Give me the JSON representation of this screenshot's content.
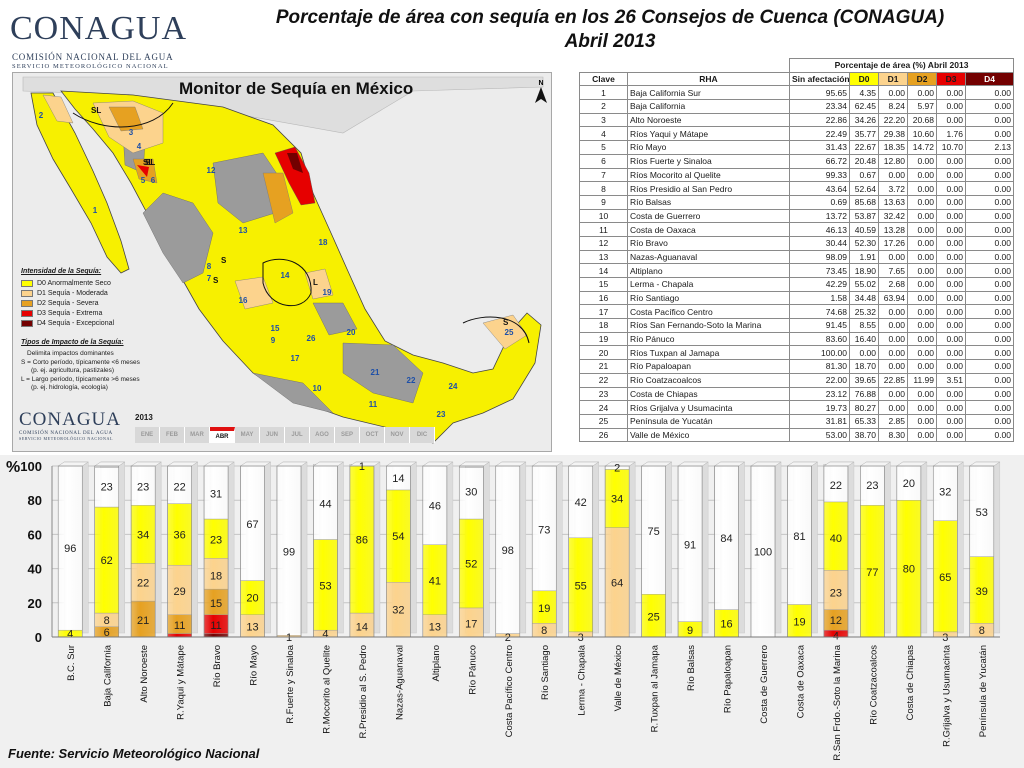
{
  "logo": {
    "word": "CONAGUA",
    "line1": "COMISIÓN NACIONAL DEL AGUA",
    "line2": "SERVICIO METEOROLÓGICO NACIONAL"
  },
  "title_line1": "Porcentaje de área con sequía en los 26 Consejos de Cuenca (CONAGUA)",
  "title_line2": "Abril 2013",
  "map": {
    "title": "Monitor de Sequía en México",
    "north": "N",
    "legend_title": "Intensidad de la Sequía:",
    "legend": [
      {
        "label": "D0 Anormalmente Seco",
        "color": "#ffff00"
      },
      {
        "label": "D1 Sequía - Moderada",
        "color": "#fcd38d"
      },
      {
        "label": "D2 Sequía - Severa",
        "color": "#e6a121"
      },
      {
        "label": "D3 Sequía - Extrema",
        "color": "#e60000"
      },
      {
        "label": "D4 Sequía - Excepcional",
        "color": "#730000"
      }
    ],
    "impact_title": "Tipos de Impacto de la Sequía:",
    "impact_lines": [
      "Delimita impactos dominantes",
      "S = Corto período, típicamente <6 meses",
      "(p. ej. agricultura, pastizales)",
      "L = Largo período, típicamente >6 meses",
      "(p. ej. hidrología, ecología)"
    ],
    "year": "2013",
    "months": [
      "ENE",
      "FEB",
      "MAR",
      "ABR",
      "MAY",
      "JUN",
      "JUL",
      "AGO",
      "SEP",
      "OCT",
      "NOV",
      "DIC"
    ],
    "active_month": "ABR",
    "region_numbers": [
      "1",
      "2",
      "3",
      "4",
      "5",
      "6",
      "7",
      "8",
      "9",
      "10",
      "11",
      "12",
      "13",
      "14",
      "15",
      "16",
      "17",
      "18",
      "19",
      "20",
      "21",
      "22",
      "23",
      "24",
      "25",
      "26"
    ],
    "impact_labels": [
      "SL",
      "SL",
      "S",
      "SL",
      "L",
      "S",
      "S"
    ]
  },
  "table": {
    "super_header": "Porcentaje de área (%) Abril 2013",
    "headers": [
      "Clave",
      "RHA",
      "Sin afectación",
      "D0",
      "D1",
      "D2",
      "D3",
      "D4"
    ],
    "rows": [
      [
        "1",
        "Baja California Sur",
        "95.65",
        "4.35",
        "0.00",
        "0.00",
        "0.00",
        "0.00"
      ],
      [
        "2",
        "Baja California",
        "23.34",
        "62.45",
        "8.24",
        "5.97",
        "0.00",
        "0.00"
      ],
      [
        "3",
        "Alto Noroeste",
        "22.86",
        "34.26",
        "22.20",
        "20.68",
        "0.00",
        "0.00"
      ],
      [
        "4",
        "Ríos Yaqui y Mátape",
        "22.49",
        "35.77",
        "29.38",
        "10.60",
        "1.76",
        "0.00"
      ],
      [
        "5",
        "Río Mayo",
        "31.43",
        "22.67",
        "18.35",
        "14.72",
        "10.70",
        "2.13"
      ],
      [
        "6",
        "Ríos Fuerte y Sinaloa",
        "66.72",
        "20.48",
        "12.80",
        "0.00",
        "0.00",
        "0.00"
      ],
      [
        "7",
        "Ríos Mocorito al Quelite",
        "99.33",
        "0.67",
        "0.00",
        "0.00",
        "0.00",
        "0.00"
      ],
      [
        "8",
        "Ríos Presidio al San Pedro",
        "43.64",
        "52.64",
        "3.72",
        "0.00",
        "0.00",
        "0.00"
      ],
      [
        "9",
        "Río Balsas",
        "0.69",
        "85.68",
        "13.63",
        "0.00",
        "0.00",
        "0.00"
      ],
      [
        "10",
        "Costa  de Guerrero",
        "13.72",
        "53.87",
        "32.42",
        "0.00",
        "0.00",
        "0.00"
      ],
      [
        "11",
        "Costa de Oaxaca",
        "46.13",
        "40.59",
        "13.28",
        "0.00",
        "0.00",
        "0.00"
      ],
      [
        "12",
        "Río Bravo",
        "30.44",
        "52.30",
        "17.26",
        "0.00",
        "0.00",
        "0.00"
      ],
      [
        "13",
        "Nazas-Aguanaval",
        "98.09",
        "1.91",
        "0.00",
        "0.00",
        "0.00",
        "0.00"
      ],
      [
        "14",
        "Altiplano",
        "73.45",
        "18.90",
        "7.65",
        "0.00",
        "0.00",
        "0.00"
      ],
      [
        "15",
        "Lerma - Chapala",
        "42.29",
        "55.02",
        "2.68",
        "0.00",
        "0.00",
        "0.00"
      ],
      [
        "16",
        "Río Santiago",
        "1.58",
        "34.48",
        "63.94",
        "0.00",
        "0.00",
        "0.00"
      ],
      [
        "17",
        "Costa Pacífico Centro",
        "74.68",
        "25.32",
        "0.00",
        "0.00",
        "0.00",
        "0.00"
      ],
      [
        "18",
        "Ríos San Fernando-Soto la Marina",
        "91.45",
        "8.55",
        "0.00",
        "0.00",
        "0.00",
        "0.00"
      ],
      [
        "19",
        "Río Pánuco",
        "83.60",
        "16.40",
        "0.00",
        "0.00",
        "0.00",
        "0.00"
      ],
      [
        "20",
        "Ríos Tuxpan al Jamapa",
        "100.00",
        "0.00",
        "0.00",
        "0.00",
        "0.00",
        "0.00"
      ],
      [
        "21",
        "Río Papaloapan",
        "81.30",
        "18.70",
        "0.00",
        "0.00",
        "0.00",
        "0.00"
      ],
      [
        "22",
        "Río Coatzacoalcos",
        "22.00",
        "39.65",
        "22.85",
        "11.99",
        "3.51",
        "0.00"
      ],
      [
        "23",
        "Costa de Chiapas",
        "23.12",
        "76.88",
        "0.00",
        "0.00",
        "0.00",
        "0.00"
      ],
      [
        "24",
        "Ríos Grijalva y Usumacinta",
        "19.73",
        "80.27",
        "0.00",
        "0.00",
        "0.00",
        "0.00"
      ],
      [
        "25",
        "Península de Yucatán",
        "31.81",
        "65.33",
        "2.85",
        "0.00",
        "0.00",
        "0.00"
      ],
      [
        "26",
        "Valle de México",
        "53.00",
        "38.70",
        "8.30",
        "0.00",
        "0.00",
        "0.00"
      ]
    ]
  },
  "colors": {
    "none": "#ffffff",
    "d0": "#ffff00",
    "d1": "#fcd38d",
    "d2": "#e6a121",
    "d3": "#e60000",
    "d4": "#730000"
  },
  "chart_data": {
    "type": "bar",
    "stacked": true,
    "ylabel": "%",
    "ylim": [
      0,
      100
    ],
    "yticks": [
      0,
      20,
      40,
      60,
      80,
      100
    ],
    "grid": true,
    "categories": [
      "B.C. Sur",
      "Baja California",
      "Alto Noroeste",
      "R.Yaqui y Mátape",
      "Río Bravo",
      "Río Mayo",
      "R.Fuerte y Sinaloa",
      "R.Mocorito al Quelite",
      "R.Presidio al S. Pedro",
      "Nazas-Aguanaval",
      "Altiplano",
      "Río Pánuco",
      "Costa Pacífico Centro",
      "Río Santiago",
      "Lerma - Chapala",
      "Valle de México",
      "R.Tuxpan al Jamapa",
      "Río Balsas",
      "Río Papaloapan",
      "Costa  de Guerrero",
      "Costa de Oaxaca",
      "R.San Frdo.-Soto la Marina",
      "Río Coatzacoalcos",
      "Costa de Chiapas",
      "R.Grijalva y Usumacinta",
      "Península de Yucatán"
    ],
    "series": [
      {
        "key": "d4",
        "values": [
          0,
          0,
          0,
          0,
          2,
          0,
          0,
          0,
          0,
          0,
          0,
          0,
          0,
          0,
          0,
          0,
          0,
          0,
          0,
          0,
          0,
          0,
          0,
          0,
          0,
          0
        ]
      },
      {
        "key": "d3",
        "values": [
          0,
          0,
          0,
          2,
          11,
          0,
          0,
          0,
          0,
          0,
          0,
          0,
          0,
          0,
          0,
          0,
          0,
          0,
          0,
          0,
          0,
          4,
          0,
          0,
          0,
          0
        ]
      },
      {
        "key": "d2",
        "values": [
          0,
          6,
          21,
          11,
          15,
          0,
          0,
          0,
          0,
          0,
          0,
          0,
          0,
          0,
          0,
          0,
          0,
          0,
          0,
          0,
          0,
          12,
          0,
          0,
          0,
          0
        ]
      },
      {
        "key": "d1",
        "values": [
          0,
          8,
          22,
          29,
          18,
          13,
          1,
          4,
          14,
          32,
          13,
          17,
          2,
          8,
          3,
          64,
          0,
          0,
          0,
          0,
          0,
          23,
          0,
          0,
          3,
          8
        ]
      },
      {
        "key": "d0",
        "values": [
          4,
          62,
          34,
          36,
          23,
          20,
          0,
          53,
          86,
          54,
          41,
          52,
          0,
          19,
          55,
          34,
          25,
          9,
          16,
          0,
          19,
          40,
          77,
          80,
          65,
          39
        ]
      },
      {
        "key": "none",
        "values": [
          96,
          23,
          23,
          22,
          31,
          67,
          99,
          44,
          1,
          14,
          46,
          30,
          98,
          73,
          42,
          2,
          75,
          91,
          84,
          100,
          81,
          22,
          23,
          20,
          32,
          53
        ]
      }
    ],
    "bar_labels": [
      [
        {
          "t": "4",
          "y": 2
        },
        {
          "t": "96",
          "y": 52
        }
      ],
      [
        {
          "t": "6",
          "y": 3
        },
        {
          "t": "8",
          "y": 10
        },
        {
          "t": "62",
          "y": 45
        },
        {
          "t": "23",
          "y": 88
        }
      ],
      [
        {
          "t": "21",
          "y": 10
        },
        {
          "t": "22",
          "y": 32
        },
        {
          "t": "34",
          "y": 60
        },
        {
          "t": "23",
          "y": 88
        }
      ],
      [
        {
          "t": "11",
          "y": 7
        },
        {
          "t": "29",
          "y": 27
        },
        {
          "t": "36",
          "y": 60
        },
        {
          "t": "22",
          "y": 88
        }
      ],
      [
        {
          "t": "11",
          "y": 7
        },
        {
          "t": "15",
          "y": 20
        },
        {
          "t": "18",
          "y": 36
        },
        {
          "t": "23",
          "y": 57
        },
        {
          "t": "31",
          "y": 84
        }
      ],
      [
        {
          "t": "13",
          "y": 6
        },
        {
          "t": "20",
          "y": 23
        },
        {
          "t": "67",
          "y": 66
        }
      ],
      [
        {
          "t": "1",
          "y": 0
        },
        {
          "t": "99",
          "y": 50
        }
      ],
      [
        {
          "t": "4",
          "y": 2
        },
        {
          "t": "53",
          "y": 30
        },
        {
          "t": "44",
          "y": 78
        }
      ],
      [
        {
          "t": "14",
          "y": 6
        },
        {
          "t": "86",
          "y": 57
        },
        {
          "t": "1",
          "y": 100
        }
      ],
      [
        {
          "t": "32",
          "y": 16
        },
        {
          "t": "54",
          "y": 59
        },
        {
          "t": "14",
          "y": 93
        }
      ],
      [
        {
          "t": "13",
          "y": 6
        },
        {
          "t": "41",
          "y": 33
        },
        {
          "t": "46",
          "y": 77
        }
      ],
      [
        {
          "t": "17",
          "y": 8
        },
        {
          "t": "52",
          "y": 43
        },
        {
          "t": "30",
          "y": 85
        }
      ],
      [
        {
          "t": "2",
          "y": 0
        },
        {
          "t": "98",
          "y": 51
        }
      ],
      [
        {
          "t": "8",
          "y": 4
        },
        {
          "t": "19",
          "y": 17
        },
        {
          "t": "73",
          "y": 63
        }
      ],
      [
        {
          "t": "3",
          "y": 0
        },
        {
          "t": "55",
          "y": 30
        },
        {
          "t": "42",
          "y": 79
        }
      ],
      [
        {
          "t": "64",
          "y": 32
        },
        {
          "t": "34",
          "y": 81
        },
        {
          "t": "2",
          "y": 99
        }
      ],
      [
        {
          "t": "25",
          "y": 12
        },
        {
          "t": "75",
          "y": 62
        }
      ],
      [
        {
          "t": "9",
          "y": 4
        },
        {
          "t": "91",
          "y": 54
        }
      ],
      [
        {
          "t": "16",
          "y": 8
        },
        {
          "t": "84",
          "y": 58
        }
      ],
      [
        {
          "t": "100",
          "y": 50
        }
      ],
      [
        {
          "t": "19",
          "y": 9
        },
        {
          "t": "81",
          "y": 59
        }
      ],
      [
        {
          "t": "4",
          "y": 1
        },
        {
          "t": "12",
          "y": 10
        },
        {
          "t": "23",
          "y": 26
        },
        {
          "t": "40",
          "y": 58
        },
        {
          "t": "22",
          "y": 89
        }
      ],
      [
        {
          "t": "77",
          "y": 38
        },
        {
          "t": "23",
          "y": 89
        }
      ],
      [
        {
          "t": "80",
          "y": 40
        },
        {
          "t": "20",
          "y": 90
        }
      ],
      [
        {
          "t": "3",
          "y": 0
        },
        {
          "t": "65",
          "y": 35
        },
        {
          "t": "32",
          "y": 85
        }
      ],
      [
        {
          "t": "8",
          "y": 4
        },
        {
          "t": "39",
          "y": 27
        },
        {
          "t": "53",
          "y": 73
        }
      ]
    ]
  },
  "source": "Fuente: Servicio Meteorológico Nacional"
}
